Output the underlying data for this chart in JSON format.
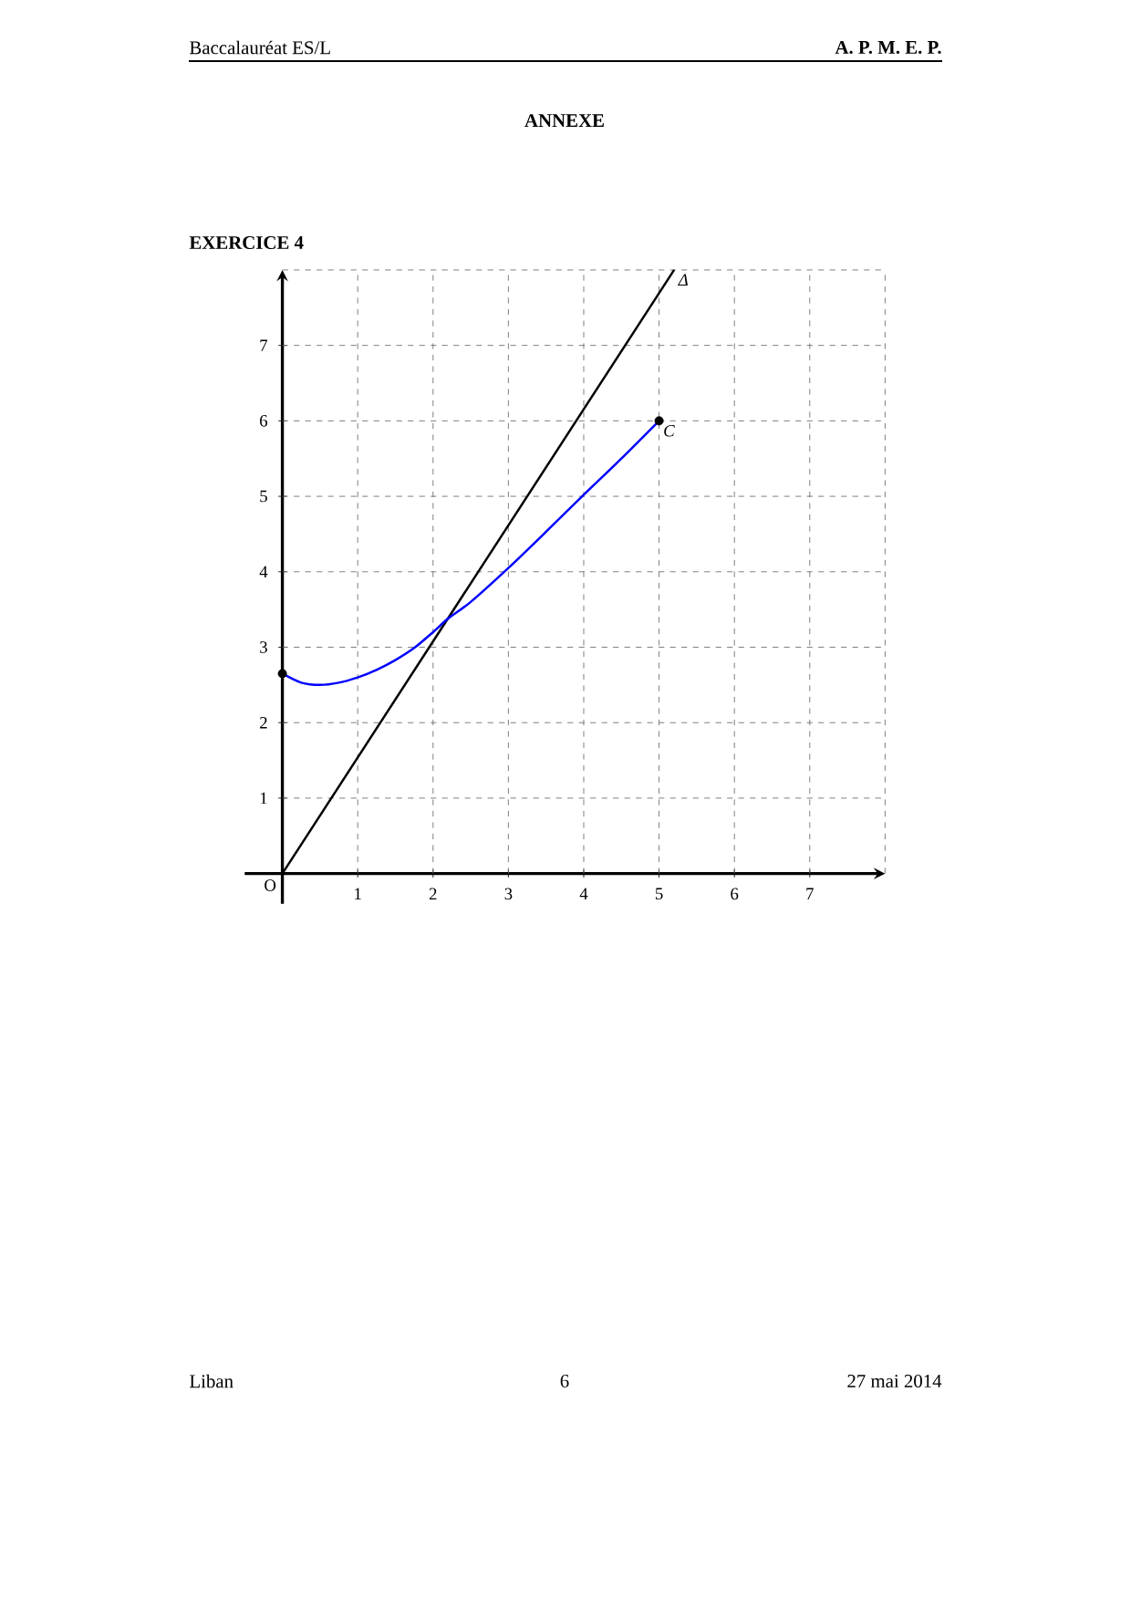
{
  "chart_data": {
    "type": "line",
    "title": "ANNEXE",
    "subtitle": "EXERCICE 4",
    "annotations": [
      "Baccalauréat ES/L",
      "A. P. M. E. P.",
      "Liban",
      "6",
      "27 mai 2014",
      {
        "text": "O",
        "x": 0,
        "y": 0
      }
    ],
    "xlim": [
      -0.5,
      8
    ],
    "ylim": [
      -0.4,
      8
    ],
    "xticks": [
      1,
      2,
      3,
      4,
      5,
      6,
      7
    ],
    "yticks": [
      1,
      2,
      3,
      4,
      5,
      6,
      7
    ],
    "grid": true,
    "line_style": "solid",
    "series": [
      {
        "name": "Δ",
        "color": "#000000",
        "x": [
          0,
          5.2
        ],
        "values": [
          0,
          8
        ]
      },
      {
        "name": "C",
        "color": "#0000ff",
        "x": [
          0,
          0.25,
          0.5,
          0.75,
          1,
          1.25,
          1.5,
          1.75,
          2,
          2.2,
          2.5,
          3,
          3.5,
          4,
          4.5,
          5
        ],
        "values": [
          2.65,
          2.53,
          2.5,
          2.53,
          2.6,
          2.7,
          2.83,
          2.99,
          3.2,
          3.38,
          3.6,
          4.05,
          4.53,
          5.02,
          5.5,
          6
        ]
      },
      {
        "type": "scatter",
        "color": "#000000",
        "marker": "circle",
        "x": [
          0,
          5
        ],
        "values": [
          2.65,
          6
        ]
      }
    ]
  }
}
